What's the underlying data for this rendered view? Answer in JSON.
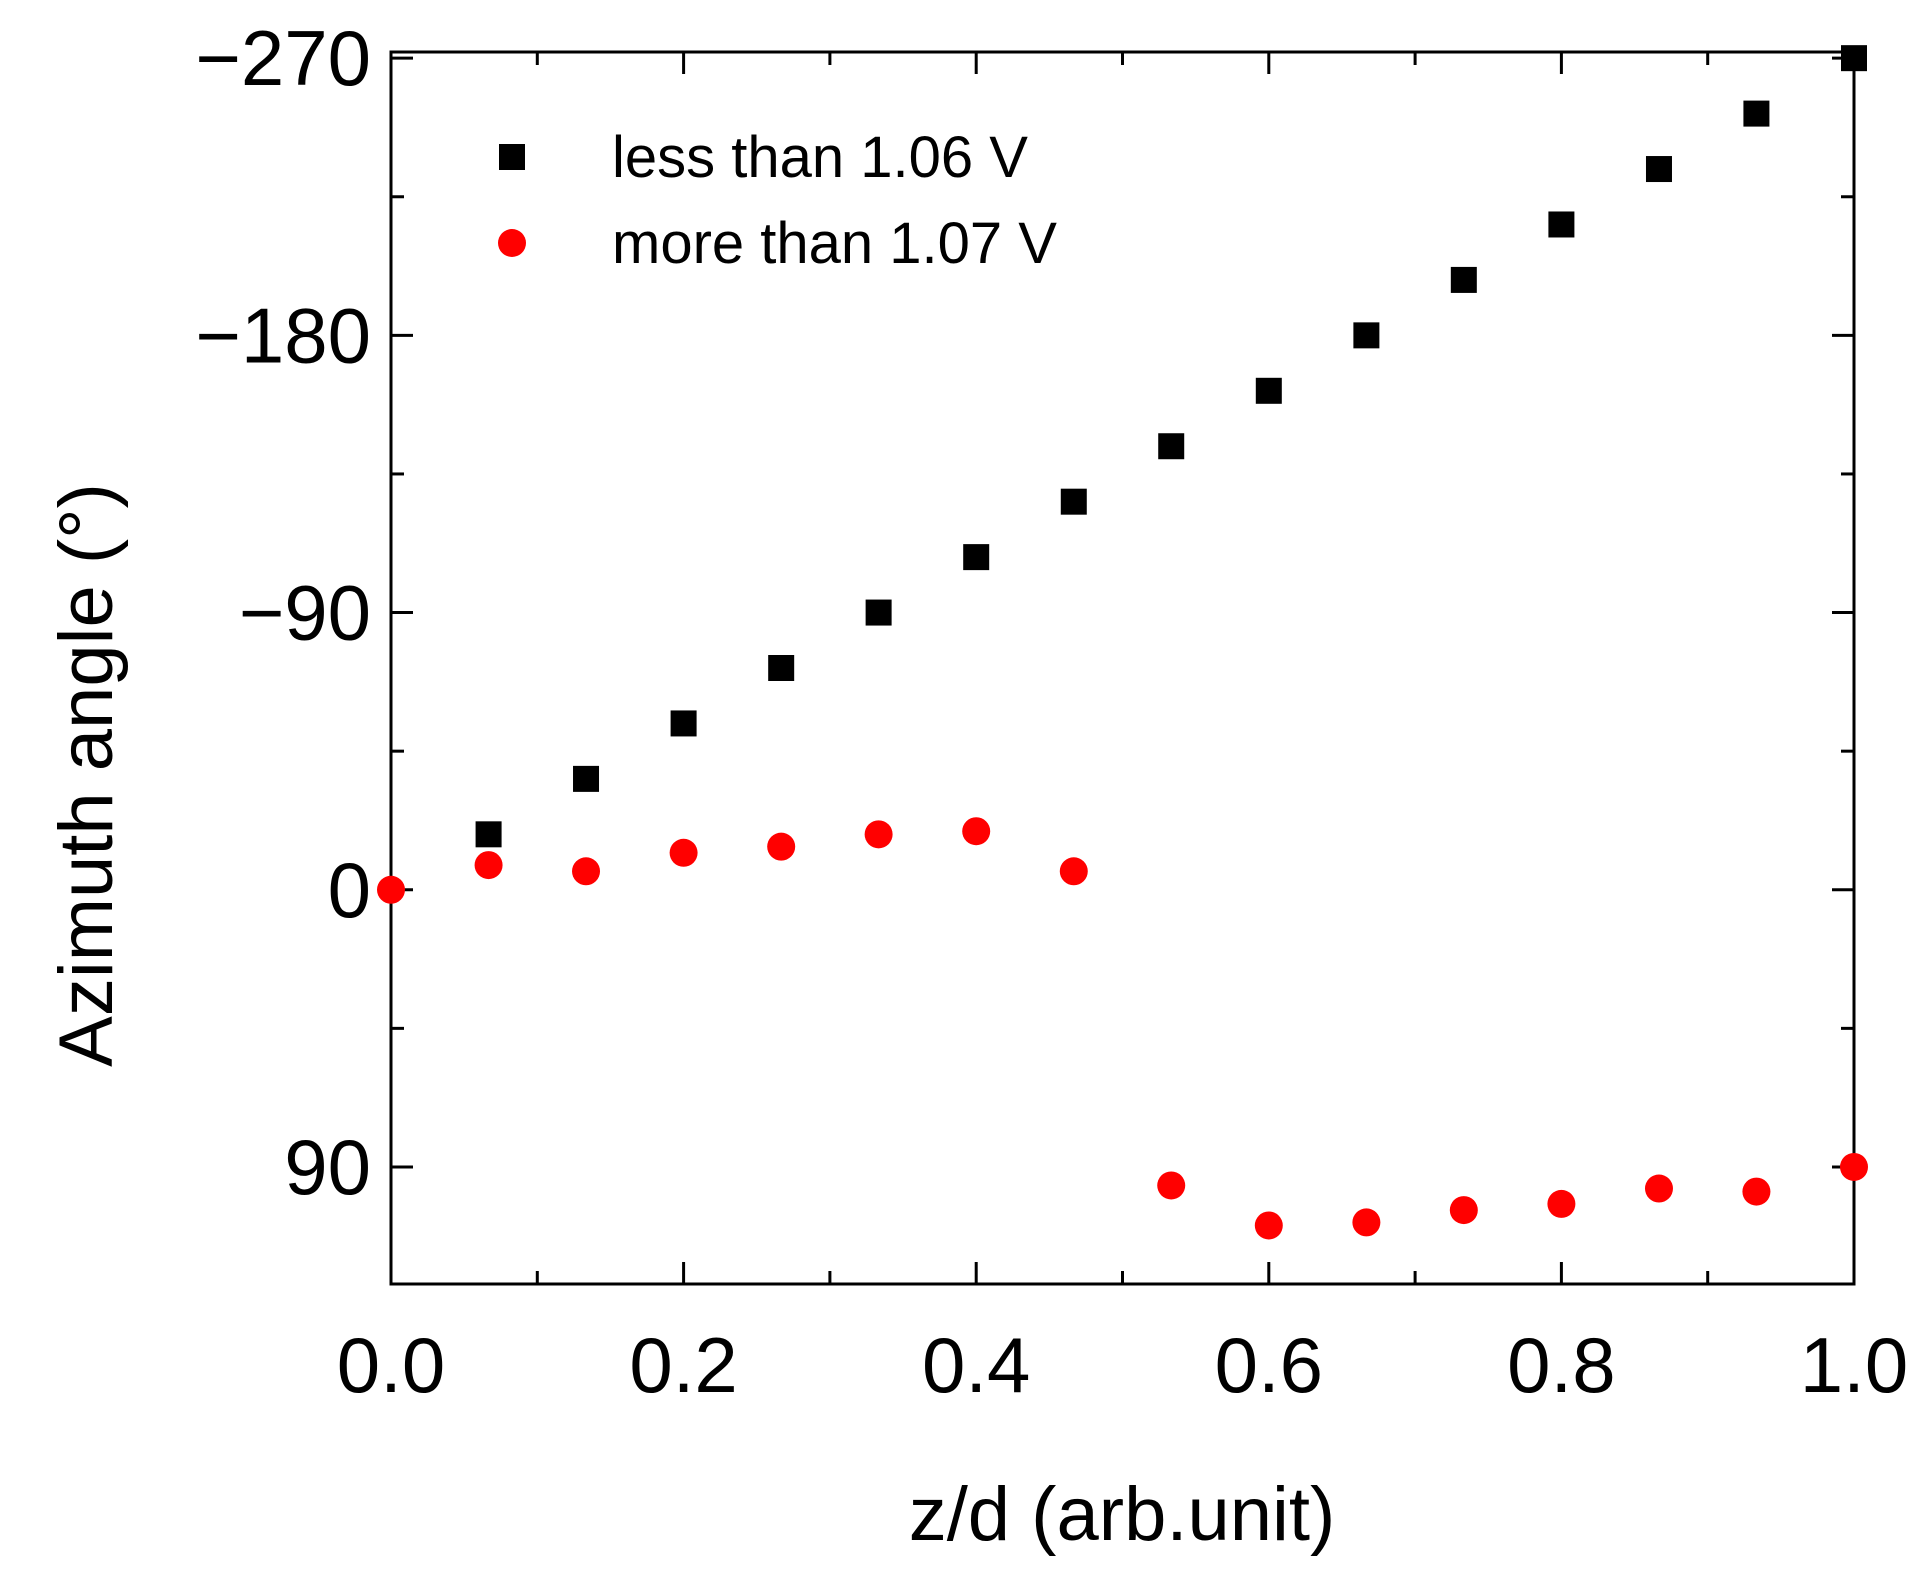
{
  "chart_data": {
    "type": "scatter",
    "xlabel": "z/d (arb.unit)",
    "ylabel": "Azimuth angle (°)",
    "xlim": [
      0.0,
      1.0
    ],
    "ylim": [
      128,
      -272
    ],
    "y_inverted": true,
    "xticks": [
      0.0,
      0.2,
      0.4,
      0.6,
      0.8,
      1.0
    ],
    "xtick_labels": [
      "0.0",
      "0.2",
      "0.4",
      "0.6",
      "0.8",
      "1.0"
    ],
    "yticks": [
      -270,
      -180,
      -90,
      0,
      90
    ],
    "ytick_labels": [
      "−270",
      "−180",
      "−90",
      "0",
      "90"
    ],
    "x_minor_step": 0.1,
    "y_minor_step": 45,
    "grid": false,
    "legend_position": "top-left",
    "series": [
      {
        "name": "less than 1.06 V",
        "marker": "square",
        "color": "#000000",
        "x": [
          0.0667,
          0.1333,
          0.2,
          0.2667,
          0.3333,
          0.4,
          0.4667,
          0.5333,
          0.6,
          0.6667,
          0.7333,
          0.8,
          0.8667,
          0.9333,
          1.0
        ],
        "y": [
          -18,
          -36,
          -54,
          -72,
          -90,
          -108,
          -126,
          -144,
          -162,
          -180,
          -198,
          -216,
          -234,
          -252,
          -270
        ]
      },
      {
        "name": "more than 1.07 V",
        "marker": "circle",
        "color": "#ff0000",
        "x": [
          0.0,
          0.0667,
          0.1333,
          0.2,
          0.2667,
          0.3333,
          0.4,
          0.4667,
          0.5333,
          0.6,
          0.6667,
          0.7333,
          0.8,
          0.8667,
          0.9333,
          1.0
        ],
        "y": [
          0,
          -8,
          -6,
          -12,
          -14,
          -18,
          -19,
          -6,
          96,
          109,
          108,
          104,
          102,
          97,
          98,
          90
        ]
      }
    ]
  }
}
